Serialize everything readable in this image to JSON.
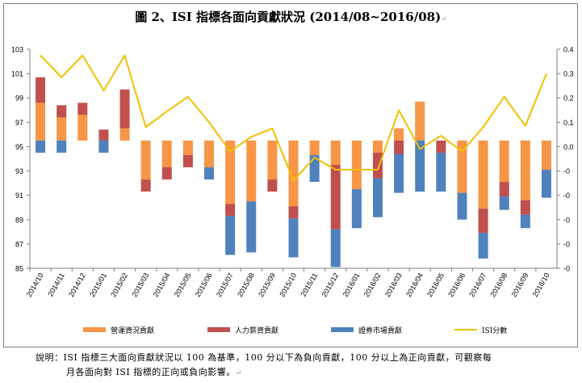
{
  "title": "圖 2、ISI 指標各面向貢獻狀況 (2014/08~2016/08)",
  "title_mark": "↵",
  "note": {
    "line1": "說明：ISI 指標三大面向貢獻狀況以 100 為基準，100 分以下為負向貢獻，100 分以上為正向貢獻，可觀察每",
    "line2": "月各面向對 ISI 指標的正向或負向影響。",
    "line2_mark": "↵"
  },
  "colors": {
    "operations": "#f79646",
    "hr": "#c0504d",
    "service": "#4f81bd",
    "isi": "#f2c000"
  },
  "chart_data": {
    "type": "bar",
    "title": "圖 2、ISI 指標各面向貢獻狀況 (2014/08~2016/08)",
    "categories": [
      "2014/10",
      "2014/11",
      "2014/12",
      "2015/01",
      "2015/02",
      "2015/03",
      "2015/04",
      "2015/05",
      "2015/06",
      "2015/07",
      "2015/08",
      "2015/09",
      "2015/10",
      "2015/11",
      "2015/12",
      "2016/01",
      "2016/02",
      "2016/03",
      "2016/04",
      "2016/05",
      "2016/06",
      "2016/07",
      "2016/08",
      "2016/09",
      "2016/10"
    ],
    "ylim": [
      85,
      103
    ],
    "yticks": [
      "85",
      "87",
      "89",
      "91",
      "93",
      "95",
      "97",
      "99",
      "101",
      "103"
    ],
    "y2ticks": [
      "0.4",
      "0.3",
      "0.2",
      "0.1",
      "0.0",
      "-0",
      "-0",
      "-0",
      "-0",
      "-0"
    ],
    "baseline": 95.5,
    "stacked": true,
    "series": [
      {
        "name": "營運資況貢獻",
        "key": "operations",
        "values": [
          3.1,
          1.9,
          2.1,
          0.0,
          1.0,
          -3.2,
          -2.2,
          -1.2,
          -2.2,
          -5.2,
          -5.0,
          -3.2,
          -5.4,
          -1.2,
          -2.0,
          -4.0,
          -1.0,
          1.0,
          3.2,
          0.0,
          -4.3,
          -5.6,
          -3.4,
          -4.9,
          -2.4
        ]
      },
      {
        "name": "人力薪資貢獻",
        "key": "hr",
        "values": [
          2.1,
          1.0,
          1.0,
          0.9,
          3.2,
          -1.0,
          -1.0,
          -1.0,
          0.0,
          -1.0,
          0.0,
          -1.0,
          -1.0,
          0.0,
          -5.3,
          0.0,
          -2.1,
          -1.1,
          0.0,
          -1.0,
          0.0,
          -2.0,
          -1.2,
          -1.2,
          0.0
        ]
      },
      {
        "name": "證券市場貢獻",
        "key": "service",
        "values": [
          -1.0,
          -1.0,
          0.0,
          -1.0,
          0.0,
          0.0,
          0.0,
          0.0,
          -1.0,
          -3.2,
          -4.2,
          0.0,
          -3.2,
          -2.2,
          -3.1,
          -3.2,
          -3.2,
          -3.2,
          -4.2,
          -3.2,
          -2.2,
          -2.1,
          -1.1,
          -1.1,
          -2.3
        ]
      },
      {
        "name": "ISI分數",
        "key": "isi",
        "type": "line",
        "axis": "left",
        "values": [
          102.5,
          100.7,
          102.5,
          99.6,
          102.5,
          96.6,
          97.9,
          99.1,
          97.0,
          94.6,
          95.8,
          96.5,
          92.2,
          94.1,
          93.1,
          93.1,
          93.1,
          98.0,
          94.8,
          95.9,
          94.6,
          96.6,
          99.1,
          96.7,
          101.0
        ]
      }
    ],
    "legend": [
      "營運資況貢獻",
      "人力薪資貢獻",
      "證券市場貢獻",
      "ISI分數"
    ],
    "legend_position": "bottom",
    "grid": false
  }
}
